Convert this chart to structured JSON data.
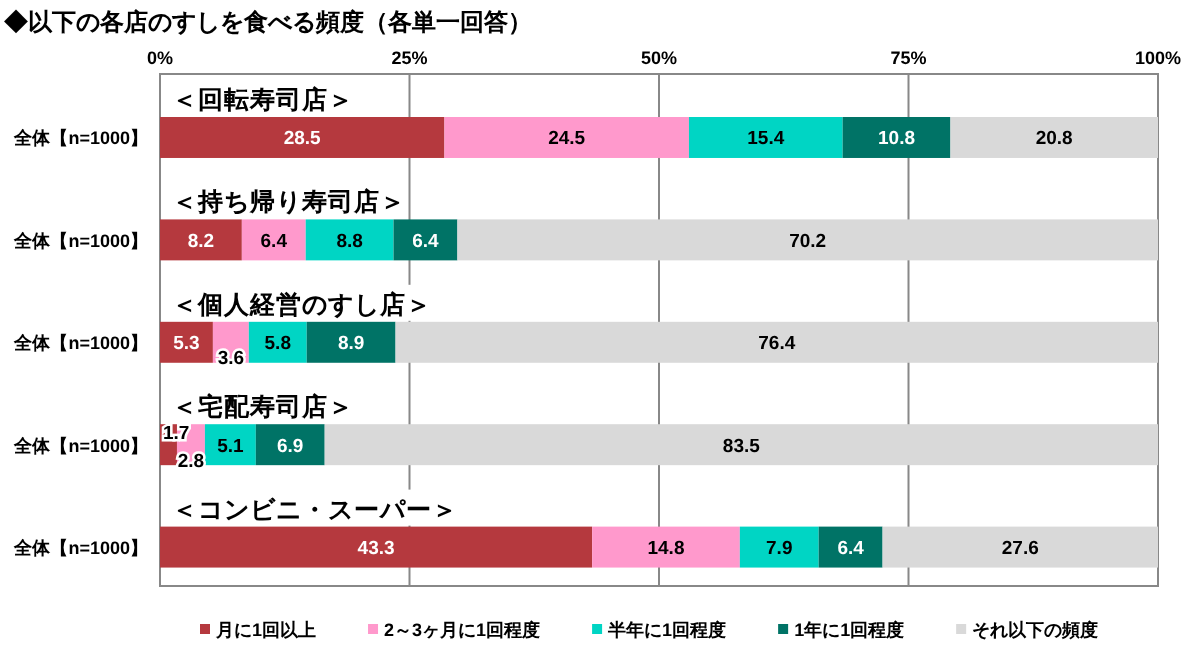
{
  "chart_data": {
    "type": "bar",
    "orientation": "horizontal",
    "stacked": true,
    "title": "◆以下の各店のすしを食べる頻度（各単一回答）",
    "categories": [
      "全体【n=1000】",
      "全体【n=1000】",
      "全体【n=1000】",
      "全体【n=1000】",
      "全体【n=1000】"
    ],
    "annotations": [
      "＜回転寿司店＞",
      "＜持ち帰り寿司店＞",
      "＜個人経営のすし店＞",
      "＜宅配寿司店＞",
      "＜コンビニ・スーパー＞"
    ],
    "series": [
      {
        "name": "月に1回以上",
        "color": "#b5393e",
        "values": [
          28.5,
          8.2,
          5.3,
          1.7,
          43.3
        ]
      },
      {
        "name": "2～3ヶ月に1回程度",
        "color": "#ff99cc",
        "values": [
          24.5,
          6.4,
          3.6,
          2.8,
          14.8
        ]
      },
      {
        "name": "半年に1回程度",
        "color": "#00d5c4",
        "values": [
          15.4,
          8.8,
          5.8,
          5.1,
          7.9
        ]
      },
      {
        "name": "1年に1回程度",
        "color": "#007366",
        "values": [
          10.8,
          6.4,
          8.9,
          6.9,
          6.4
        ]
      },
      {
        "name": "それ以下の頻度",
        "color": "#d9d9d9",
        "values": [
          20.8,
          70.2,
          76.4,
          83.5,
          27.6
        ]
      }
    ],
    "xlim": [
      0,
      100
    ],
    "xticks": [
      {
        "value": 0,
        "label": "0%"
      },
      {
        "value": 25,
        "label": "25%"
      },
      {
        "value": 50,
        "label": "50%"
      },
      {
        "value": 75,
        "label": "75%"
      },
      {
        "value": 100,
        "label": "100%"
      }
    ],
    "grid": "x",
    "legend": "bottom",
    "data_labels": true
  }
}
